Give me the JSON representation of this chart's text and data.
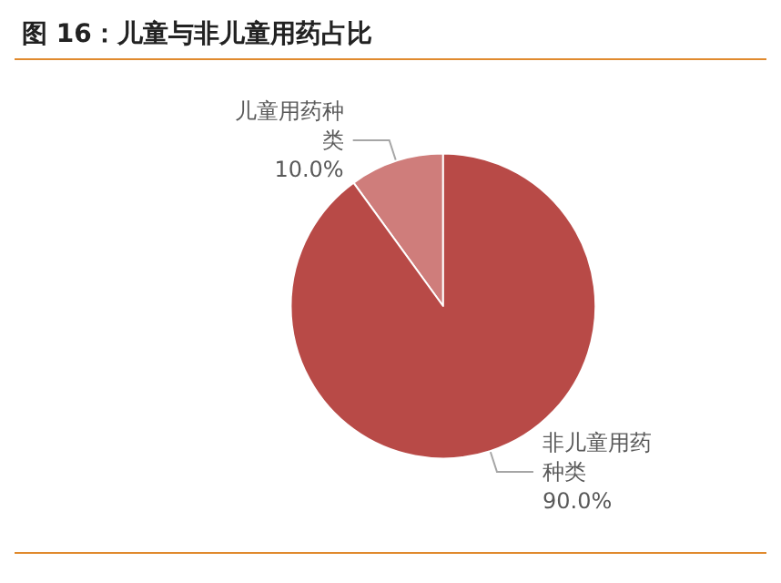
{
  "chart_data": {
    "type": "pie",
    "title": "图 16：儿童与非儿童用药占比",
    "categories": [
      "儿童用药种类",
      "非儿童用药种类"
    ],
    "values": [
      10,
      90
    ],
    "colors": [
      "#cf7d7b",
      "#b84a47"
    ],
    "value_labels": [
      "10.0%",
      "90.0%"
    ],
    "legend": false
  }
}
